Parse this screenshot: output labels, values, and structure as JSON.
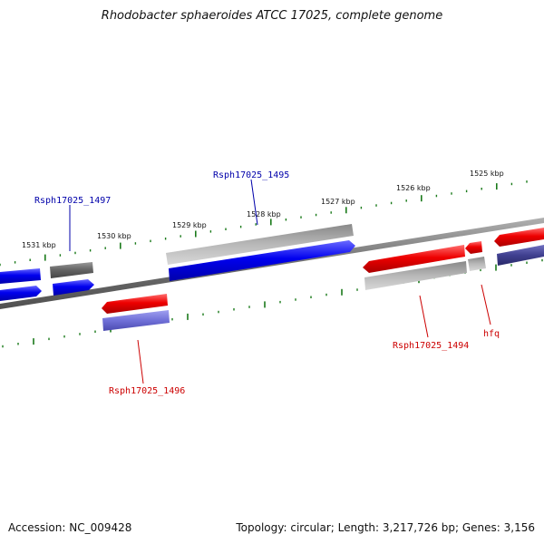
{
  "title": "Rhodobacter sphaeroides ATCC 17025, complete genome",
  "footer": {
    "accession": "Accession: NC_009428",
    "stats": "Topology: circular; Length: 3,217,726 bp; Genes: 3,156"
  },
  "colors": {
    "forward": "#0000ee",
    "reverse": "#ee0000",
    "forward_pseudo": "#666666",
    "reverse_pseudo": "#aaaaaa",
    "rna_light": "#7070d8",
    "rna_dark": "#404090",
    "backbone": "#808080",
    "tick": "#1a7a1a",
    "label_blue": "#0000aa",
    "label_red": "#cc0000"
  },
  "ticks": [
    {
      "label": "1531 kbp"
    },
    {
      "label": "1530 kbp"
    },
    {
      "label": "1529 kbp"
    },
    {
      "label": "1528 kbp"
    },
    {
      "label": "1527 kbp"
    },
    {
      "label": "1526 kbp"
    },
    {
      "label": "1525 kbp"
    }
  ],
  "gene_labels": [
    {
      "name": "Rsph17025_1497"
    },
    {
      "name": "Rsph17025_1495"
    },
    {
      "name": "Rsph17025_1496"
    },
    {
      "name": "Rsph17025_1494"
    },
    {
      "name": "hfq"
    }
  ]
}
